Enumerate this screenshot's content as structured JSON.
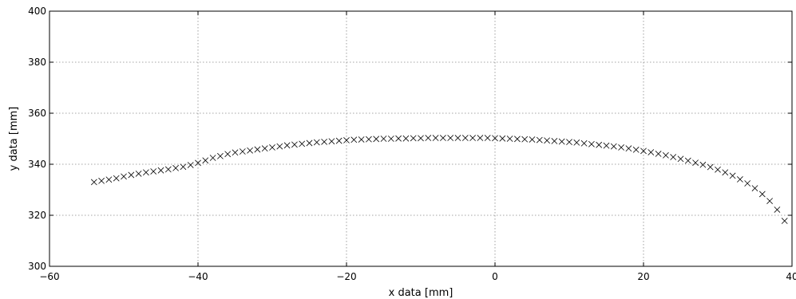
{
  "chart_data": {
    "type": "scatter",
    "xlabel": "x data [mm]",
    "ylabel": "y data [mm]",
    "xlim": [
      -60,
      40
    ],
    "ylim": [
      300,
      400
    ],
    "xticks": [
      -60,
      -40,
      -20,
      0,
      20,
      40
    ],
    "yticks": [
      300,
      320,
      340,
      360,
      380,
      400
    ],
    "xtick_labels": [
      "−60",
      "−40",
      "−20",
      "0",
      "20",
      "40"
    ],
    "ytick_labels": [
      "300",
      "320",
      "340",
      "360",
      "380",
      "400"
    ],
    "grid": true,
    "marker": "x",
    "marker_color": "#000000",
    "series": [
      {
        "x": [
          -54,
          -53,
          -52,
          -51,
          -50,
          -49,
          -48,
          -47,
          -46,
          -45,
          -44,
          -43,
          -42,
          -41,
          -40,
          -39,
          -38,
          -37,
          -36,
          -35,
          -34,
          -33,
          -32,
          -31,
          -30,
          -29,
          -28,
          -27,
          -26,
          -25,
          -24,
          -23,
          -22,
          -21,
          -20,
          -19,
          -18,
          -17,
          -16,
          -15,
          -14,
          -13,
          -12,
          -11,
          -10,
          -9,
          -8,
          -7,
          -6,
          -5,
          -4,
          -3,
          -2,
          -1,
          0,
          1,
          2,
          3,
          4,
          5,
          6,
          7,
          8,
          9,
          10,
          11,
          12,
          13,
          14,
          15,
          16,
          17,
          18,
          19,
          20,
          21,
          22,
          23,
          24,
          25,
          26,
          27,
          28,
          29,
          30,
          31,
          32,
          33,
          34,
          35,
          36,
          37,
          38,
          39
        ],
        "y": [
          333.0,
          333.5,
          334.0,
          334.5,
          335.2,
          335.8,
          336.3,
          336.8,
          337.2,
          337.6,
          338.0,
          338.5,
          339.0,
          339.7,
          340.5,
          341.5,
          342.5,
          343.2,
          344.0,
          344.6,
          345.0,
          345.4,
          345.8,
          346.2,
          346.6,
          347.0,
          347.4,
          347.7,
          348.0,
          348.3,
          348.6,
          348.8,
          349.0,
          349.2,
          349.4,
          349.6,
          349.7,
          349.8,
          349.9,
          350.0,
          350.0,
          350.1,
          350.1,
          350.2,
          350.2,
          350.3,
          350.3,
          350.3,
          350.3,
          350.3,
          350.3,
          350.3,
          350.3,
          350.3,
          350.2,
          350.1,
          350.0,
          349.9,
          349.8,
          349.7,
          349.5,
          349.3,
          349.1,
          348.9,
          348.7,
          348.5,
          348.2,
          347.9,
          347.6,
          347.3,
          347.0,
          346.6,
          346.2,
          345.7,
          345.2,
          344.7,
          344.1,
          343.5,
          342.8,
          342.1,
          341.4,
          340.6,
          339.8,
          338.9,
          337.9,
          336.8,
          335.5,
          334.1,
          332.5,
          330.6,
          328.3,
          325.6,
          322.2,
          317.8
        ]
      }
    ]
  }
}
